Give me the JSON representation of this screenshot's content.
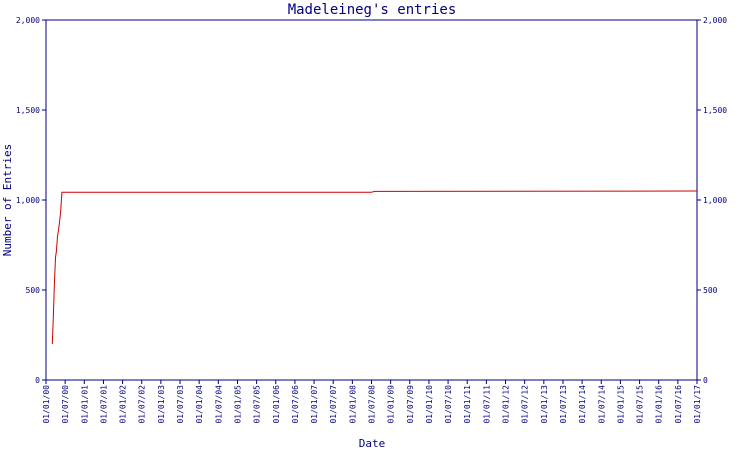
{
  "chart_data": {
    "type": "line",
    "title": "Madeleineg's entries",
    "xlabel": "Date",
    "ylabel": "Number of Entries",
    "ylim": [
      0,
      2000
    ],
    "y_ticks": [
      0,
      500,
      1000,
      1500,
      2000
    ],
    "y_tick_labels": [
      "0",
      "500",
      "1,000",
      "1,500",
      "2,000"
    ],
    "x_tick_labels": [
      "01/01/00",
      "01/07/00",
      "01/01/01",
      "01/07/01",
      "01/01/02",
      "01/07/02",
      "01/01/03",
      "01/07/03",
      "01/01/04",
      "01/07/04",
      "01/01/05",
      "01/07/05",
      "01/01/06",
      "01/07/06",
      "01/01/07",
      "01/07/07",
      "01/01/08",
      "01/07/08",
      "01/01/09",
      "01/07/09",
      "01/01/10",
      "01/07/10",
      "01/01/11",
      "01/07/11",
      "01/01/12",
      "01/07/12",
      "01/01/13",
      "01/07/13",
      "01/01/14",
      "01/07/14",
      "01/01/15",
      "01/07/15",
      "01/01/16",
      "01/07/16",
      "01/01/17"
    ],
    "grid": false,
    "colors": {
      "axes": "#000080",
      "series": "#d00000"
    },
    "series": [
      {
        "x": [
          "2000-03-01",
          "2000-03-10",
          "2000-03-20",
          "2000-04-01",
          "2000-04-10",
          "2000-04-20",
          "2000-05-01",
          "2000-05-10",
          "2000-05-20",
          "2000-06-01",
          "2000-06-15",
          "2008-07-01",
          "2008-08-01",
          "2017-01-01"
        ],
        "y": [
          200,
          330,
          520,
          680,
          720,
          800,
          840,
          880,
          940,
          1042,
          1043,
          1043,
          1048,
          1050
        ]
      }
    ]
  }
}
